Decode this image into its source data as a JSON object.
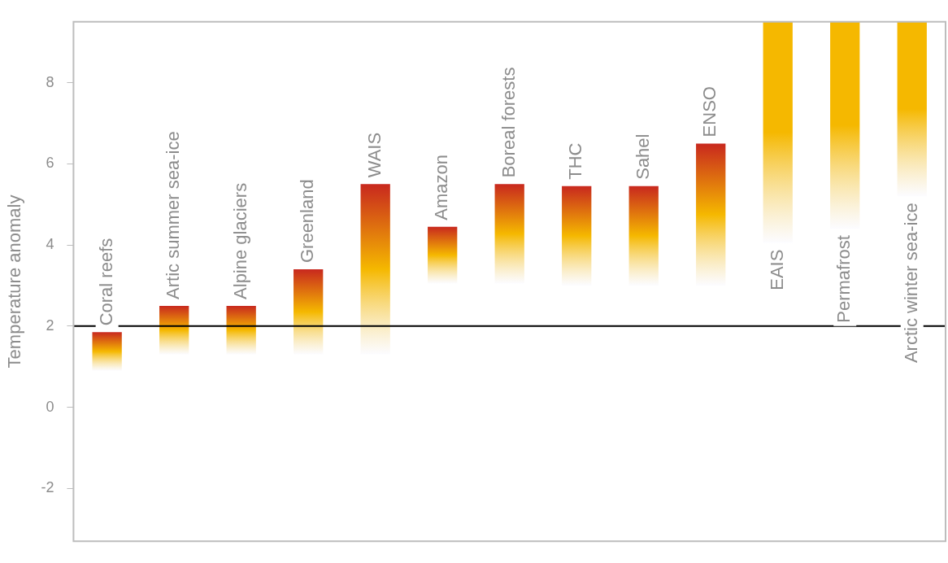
{
  "chart_data": {
    "type": "bar",
    "ylabel": "Temperature anomaly",
    "categories": [
      "Coral reefs",
      "Artic summer sea-ice",
      "Alpine glaciers",
      "Greenland",
      "WAIS",
      "Amazon",
      "Boreal forests",
      "THC",
      "Sahel",
      "ENSO",
      "EAIS",
      "Permafrost",
      "Arctic winter sea-ice"
    ],
    "base": [
      0.9,
      1.3,
      1.3,
      1.3,
      1.3,
      3.05,
      3.05,
      3.0,
      3.0,
      3.0,
      4.05,
      4.4,
      5.2
    ],
    "values": [
      0.95,
      1.2,
      1.2,
      2.1,
      4.2,
      1.4,
      2.45,
      2.45,
      2.45,
      3.5,
      5.45,
      5.1,
      4.3
    ],
    "colors": [
      "#c8281e",
      "#c8281e",
      "#c8281e",
      "#c8281e",
      "#c8281e",
      "#c8281e",
      "#c8281e",
      "#c8281e",
      "#c8281e",
      "#c8281e",
      "#f5b800",
      "#f5b800",
      "#f5b800"
    ],
    "ylim": [
      -3.3,
      9.5
    ],
    "yticks": [
      -2,
      0,
      2,
      4,
      6,
      8
    ],
    "ref_lines": [
      {
        "axis": "y",
        "value": 2,
        "color": "#000000"
      }
    ],
    "grid": false,
    "legend": false
  }
}
